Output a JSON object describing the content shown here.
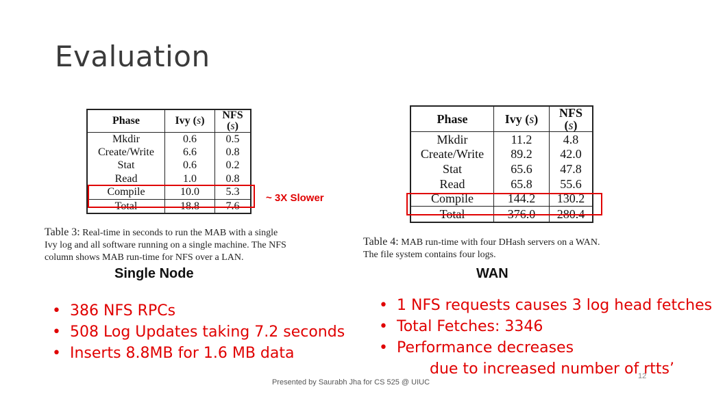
{
  "slide": {
    "title": "Evaluation",
    "footer": "Presented by Saurabh Jha for CS 525 @ UIUC",
    "page_number": "12"
  },
  "colors": {
    "accent": "#e00000",
    "title": "#3a3a3a"
  },
  "single_node": {
    "headers": [
      "Phase",
      "Ivy (s)",
      "NFS (s)"
    ],
    "rows": [
      [
        "Mkdir",
        "0.6",
        "0.5"
      ],
      [
        "Create/Write",
        "6.6",
        "0.8"
      ],
      [
        "Stat",
        "0.6",
        "0.2"
      ],
      [
        "Read",
        "1.0",
        "0.8"
      ],
      [
        "Compile",
        "10.0",
        "5.3"
      ]
    ],
    "total": [
      "Total",
      "18.8",
      "7.6"
    ],
    "annotation": "~ 3X Slower",
    "caption_label": "Table 3:",
    "caption_lines": [
      " Real-time in seconds to run the MAB with a single",
      "Ivy log and all software running on a single machine. The NFS",
      "column shows MAB run-time for NFS over a LAN."
    ],
    "label": "Single Node",
    "bullets": [
      "386 NFS RPCs",
      "508 Log Updates taking 7.2 seconds",
      "Inserts 8.8MB for 1.6 MB data"
    ]
  },
  "wan": {
    "headers": [
      "Phase",
      "Ivy (s)",
      "NFS (s)"
    ],
    "rows": [
      [
        "Mkdir",
        "11.2",
        "4.8"
      ],
      [
        "Create/Write",
        "89.2",
        "42.0"
      ],
      [
        "Stat",
        "65.6",
        "47.8"
      ],
      [
        "Read",
        "65.8",
        "55.6"
      ],
      [
        "Compile",
        "144.2",
        "130.2"
      ]
    ],
    "total": [
      "Total",
      "376.0",
      "280.4"
    ],
    "caption_label": "Table 4:",
    "caption_lines": [
      " MAB run-time with four DHash servers on a WAN.",
      "The file system contains four logs."
    ],
    "label": "WAN",
    "bullets": [
      "1 NFS requests causes 3 log head fetches",
      "Total Fetches: 3346",
      "Performance decreases"
    ],
    "bullet_continuation": "due to increased number of rtts’"
  }
}
